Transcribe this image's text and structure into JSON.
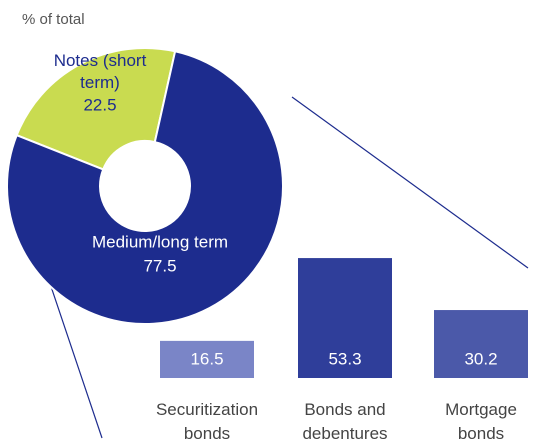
{
  "chart_data": [
    {
      "type": "pie",
      "subtitle": "% of total",
      "categories": [
        "Notes (short\nterm)",
        "Medium/long term"
      ],
      "values": [
        22.5,
        77.5
      ],
      "colors": [
        "#c9db50",
        "#1d2c8e"
      ],
      "label_colors": [
        "#1d2c8e",
        "#ffffff"
      ]
    },
    {
      "type": "bar",
      "categories": [
        "Securitization\nbonds",
        "Bonds and\ndebentures",
        "Mortgage\nbonds"
      ],
      "values": [
        16.5,
        53.3,
        30.2
      ],
      "colors": [
        "#7a85c7",
        "#2f3e9a",
        "#4b59a9"
      ]
    }
  ]
}
